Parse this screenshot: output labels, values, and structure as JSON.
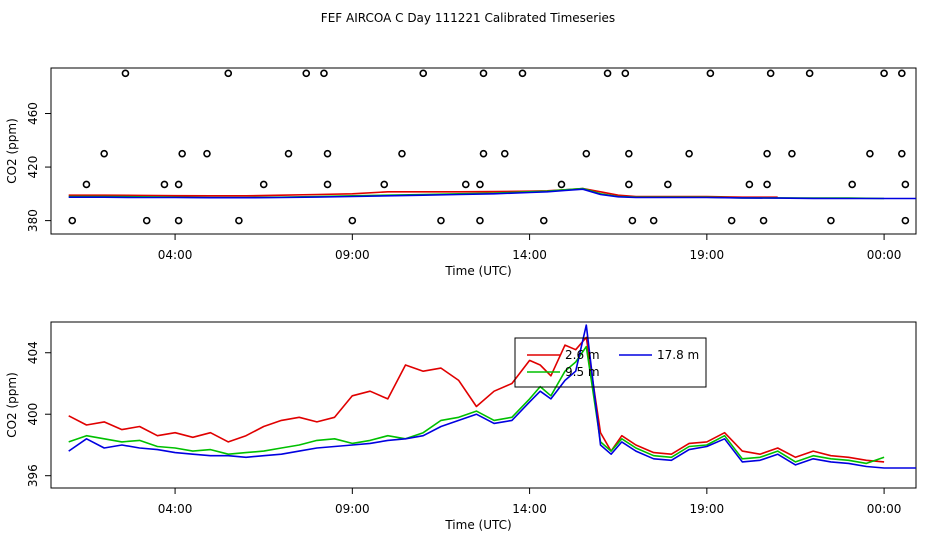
{
  "title": "FEF AIRCOA C  Day 111221  Calibrated Timeseries",
  "colors": {
    "red": "#e00000",
    "green": "#00c000",
    "blue": "#0000e0",
    "black": "#000000"
  },
  "chart_data": [
    {
      "type": "scatter+line",
      "name": "top",
      "xlabel": "Time (UTC)",
      "ylabel": "CO2 (ppm)",
      "xlim": [
        0.5,
        24.9
      ],
      "ylim": [
        370,
        494
      ],
      "xticks": [
        4,
        9,
        14,
        19,
        24
      ],
      "xtick_labels": [
        "04:00",
        "09:00",
        "14:00",
        "19:00",
        "00:00"
      ],
      "yticks": [
        380,
        420,
        460
      ],
      "ytick_labels": [
        "380",
        "420",
        "460"
      ],
      "points": [
        [
          1.1,
          380
        ],
        [
          1.5,
          407
        ],
        [
          2.0,
          430
        ],
        [
          2.6,
          490
        ],
        [
          3.2,
          380
        ],
        [
          3.7,
          407
        ],
        [
          4.1,
          407
        ],
        [
          4.2,
          430
        ],
        [
          4.1,
          380
        ],
        [
          4.9,
          430
        ],
        [
          5.5,
          490
        ],
        [
          5.8,
          380
        ],
        [
          6.5,
          407
        ],
        [
          7.2,
          430
        ],
        [
          7.7,
          490
        ],
        [
          8.2,
          490
        ],
        [
          8.3,
          430
        ],
        [
          8.3,
          407
        ],
        [
          9.0,
          380
        ],
        [
          9.9,
          407
        ],
        [
          10.4,
          430
        ],
        [
          11.0,
          490
        ],
        [
          11.5,
          380
        ],
        [
          12.2,
          407
        ],
        [
          12.7,
          490
        ],
        [
          12.7,
          430
        ],
        [
          12.6,
          407
        ],
        [
          12.6,
          380
        ],
        [
          13.3,
          430
        ],
        [
          13.8,
          490
        ],
        [
          14.4,
          380
        ],
        [
          14.9,
          407
        ],
        [
          15.6,
          430
        ],
        [
          16.2,
          490
        ],
        [
          16.7,
          490
        ],
        [
          16.8,
          430
        ],
        [
          16.8,
          407
        ],
        [
          16.9,
          380
        ],
        [
          17.5,
          380
        ],
        [
          17.9,
          407
        ],
        [
          18.5,
          430
        ],
        [
          19.1,
          490
        ],
        [
          19.7,
          380
        ],
        [
          20.2,
          407
        ],
        [
          20.6,
          380
        ],
        [
          20.7,
          407
        ],
        [
          20.7,
          430
        ],
        [
          20.8,
          490
        ],
        [
          21.4,
          430
        ],
        [
          21.9,
          490
        ],
        [
          22.5,
          380
        ],
        [
          23.1,
          407
        ],
        [
          23.6,
          430
        ],
        [
          24.0,
          490
        ],
        [
          24.5,
          490
        ],
        [
          24.5,
          430
        ],
        [
          24.6,
          407
        ],
        [
          24.6,
          380
        ]
      ],
      "series": [
        {
          "name": "2.6 m",
          "color": "red",
          "x": [
            1,
            2,
            3,
            4,
            5,
            6,
            7,
            8,
            9,
            10,
            11,
            12,
            13,
            14,
            14.5,
            15,
            15.5,
            16,
            16.5,
            17,
            18,
            19,
            20,
            21
          ],
          "values": [
            399,
            399,
            398.8,
            398.6,
            398.5,
            398.5,
            399,
            399.5,
            400,
            401.5,
            401.5,
            401.5,
            401.7,
            402,
            402.3,
            403,
            404,
            401.5,
            399,
            398,
            398,
            398,
            397.5,
            397.5
          ]
        },
        {
          "name": "9.5 m",
          "color": "green",
          "x": [
            1,
            2,
            3,
            4,
            5,
            6,
            7,
            8,
            9,
            10,
            11,
            12,
            13,
            14,
            14.5,
            15,
            15.5,
            16,
            16.5,
            17,
            18,
            19,
            20,
            21,
            22,
            23,
            24
          ],
          "values": [
            398,
            398,
            397.8,
            397.5,
            397.3,
            397.3,
            397.5,
            398,
            398.5,
            399,
            399.5,
            400,
            400.5,
            401.5,
            402,
            403,
            404,
            400,
            398,
            397.5,
            397.5,
            397.5,
            397,
            397,
            396.8,
            396.8,
            396.5
          ]
        },
        {
          "name": "17.8 m",
          "color": "blue",
          "x": [
            1,
            2,
            3,
            4,
            5,
            6,
            7,
            8,
            9,
            10,
            11,
            12,
            13,
            14,
            14.5,
            15,
            15.5,
            16,
            16.5,
            17,
            18,
            19,
            20,
            21,
            22,
            23,
            24,
            24.9
          ],
          "values": [
            397.5,
            397.5,
            397.3,
            397.3,
            397.1,
            397.1,
            397.3,
            397.6,
            398,
            398.5,
            399,
            399.5,
            400,
            401,
            401.5,
            402.5,
            403.5,
            399.5,
            397.8,
            397.3,
            397.3,
            397.3,
            397,
            396.8,
            396.6,
            396.5,
            396.5,
            396.5
          ]
        }
      ]
    },
    {
      "type": "line",
      "name": "bottom",
      "xlabel": "Time (UTC)",
      "ylabel": "CO2 (ppm)",
      "xlim": [
        0.5,
        24.9
      ],
      "ylim": [
        395.2,
        406
      ],
      "xticks": [
        4,
        9,
        14,
        19,
        24
      ],
      "xtick_labels": [
        "04:00",
        "09:00",
        "14:00",
        "19:00",
        "00:00"
      ],
      "yticks": [
        396,
        400,
        404
      ],
      "ytick_labels": [
        "396",
        "400",
        "404"
      ],
      "legend": {
        "placement": "top-center",
        "entries": [
          "2.6 m",
          "9.5 m",
          "17.8 m"
        ]
      },
      "series": [
        {
          "name": "2.6 m",
          "color": "red",
          "x": [
            1,
            1.5,
            2,
            2.5,
            3,
            3.5,
            4,
            4.5,
            5,
            5.5,
            6,
            6.5,
            7,
            7.5,
            8,
            8.5,
            9,
            9.5,
            10,
            10.5,
            11,
            11.5,
            12,
            12.5,
            13,
            13.5,
            14,
            14.3,
            14.6,
            15,
            15.3,
            15.6,
            16,
            16.3,
            16.6,
            17,
            17.5,
            18,
            18.5,
            19,
            19.5,
            20,
            20.5,
            21,
            21.5,
            22,
            22.5,
            23,
            23.5,
            24
          ],
          "values": [
            399.9,
            399.3,
            399.5,
            399.0,
            399.2,
            398.6,
            398.8,
            398.5,
            398.8,
            398.2,
            398.6,
            399.2,
            399.6,
            399.8,
            399.5,
            399.8,
            401.2,
            401.5,
            401.0,
            403.2,
            402.8,
            403.0,
            402.2,
            400.5,
            401.5,
            402.0,
            403.5,
            403.2,
            402.5,
            404.5,
            404.2,
            405.0,
            398.8,
            397.6,
            398.6,
            398.0,
            397.5,
            397.4,
            398.1,
            398.2,
            398.8,
            397.6,
            397.4,
            397.8,
            397.2,
            397.6,
            397.3,
            397.2,
            397.0,
            396.9
          ]
        },
        {
          "name": "9.5 m",
          "color": "green",
          "x": [
            1,
            1.5,
            2,
            2.5,
            3,
            3.5,
            4,
            4.5,
            5,
            5.5,
            6,
            6.5,
            7,
            7.5,
            8,
            8.5,
            9,
            9.5,
            10,
            10.5,
            11,
            11.5,
            12,
            12.5,
            13,
            13.5,
            14,
            14.3,
            14.6,
            15,
            15.3,
            15.6,
            16,
            16.3,
            16.6,
            17,
            17.5,
            18,
            18.5,
            19,
            19.5,
            20,
            20.5,
            21,
            21.5,
            22,
            22.5,
            23,
            23.5,
            24
          ],
          "values": [
            398.2,
            398.6,
            398.4,
            398.2,
            398.3,
            397.9,
            397.8,
            397.6,
            397.7,
            397.4,
            397.5,
            397.6,
            397.8,
            398.0,
            398.3,
            398.4,
            398.1,
            398.3,
            398.6,
            398.4,
            398.8,
            399.6,
            399.8,
            400.2,
            399.6,
            399.8,
            401.0,
            401.8,
            401.2,
            402.8,
            403.4,
            404.4,
            398.2,
            397.6,
            398.4,
            397.8,
            397.3,
            397.2,
            397.9,
            398.0,
            398.6,
            397.1,
            397.2,
            397.6,
            396.9,
            397.3,
            397.1,
            397.0,
            396.8,
            397.2
          ]
        },
        {
          "name": "17.8 m",
          "color": "blue",
          "x": [
            1,
            1.5,
            2,
            2.5,
            3,
            3.5,
            4,
            4.5,
            5,
            5.5,
            6,
            6.5,
            7,
            7.5,
            8,
            8.5,
            9,
            9.5,
            10,
            10.5,
            11,
            11.5,
            12,
            12.5,
            13,
            13.5,
            14,
            14.3,
            14.6,
            15,
            15.3,
            15.6,
            16,
            16.3,
            16.6,
            17,
            17.5,
            18,
            18.5,
            19,
            19.5,
            20,
            20.5,
            21,
            21.5,
            22,
            22.5,
            23,
            23.5,
            24,
            24.9
          ],
          "values": [
            397.6,
            398.4,
            397.8,
            398.0,
            397.8,
            397.7,
            397.5,
            397.4,
            397.3,
            397.3,
            397.2,
            397.3,
            397.4,
            397.6,
            397.8,
            397.9,
            398.0,
            398.1,
            398.3,
            398.4,
            398.6,
            399.2,
            399.6,
            400.0,
            399.4,
            399.6,
            400.8,
            401.5,
            401.0,
            402.2,
            402.8,
            405.8,
            398.0,
            397.4,
            398.2,
            397.6,
            397.1,
            397.0,
            397.7,
            397.9,
            398.4,
            396.9,
            397.0,
            397.4,
            396.7,
            397.1,
            396.9,
            396.8,
            396.6,
            396.5,
            396.5
          ]
        }
      ]
    }
  ]
}
